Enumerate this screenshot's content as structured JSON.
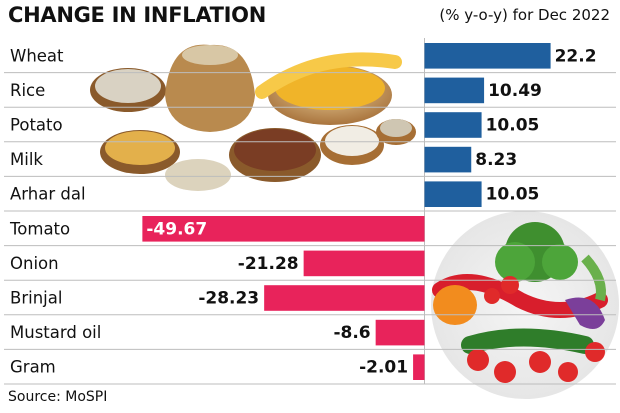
{
  "chart_data": {
    "type": "bar",
    "title": "CHANGE IN INFLATION",
    "subtitle": "(% y-o-y) for Dec 2022",
    "categories": [
      "Wheat",
      "Rice",
      "Potato",
      "Milk",
      "Arhar dal",
      "Tomato",
      "Onion",
      "Brinjal",
      "Mustard oil",
      "Gram"
    ],
    "values": [
      22.2,
      10.49,
      10.05,
      8.23,
      10.05,
      -49.67,
      -21.28,
      -28.23,
      -8.6,
      -2.01
    ],
    "value_labels": [
      "22.2",
      "10.49",
      "10.05",
      "8.23",
      "10.05",
      "-49.67",
      "-21.28",
      "-28.23",
      "-8.6",
      "-2.01"
    ],
    "source": "Source: MoSPI",
    "colors": {
      "positive": "#1f5f9e",
      "negative": "#e8235b"
    },
    "xlim": [
      -55,
      25
    ],
    "illustrations": [
      "grains-in-bowls-photo",
      "fresh-vegetables-photo"
    ]
  }
}
